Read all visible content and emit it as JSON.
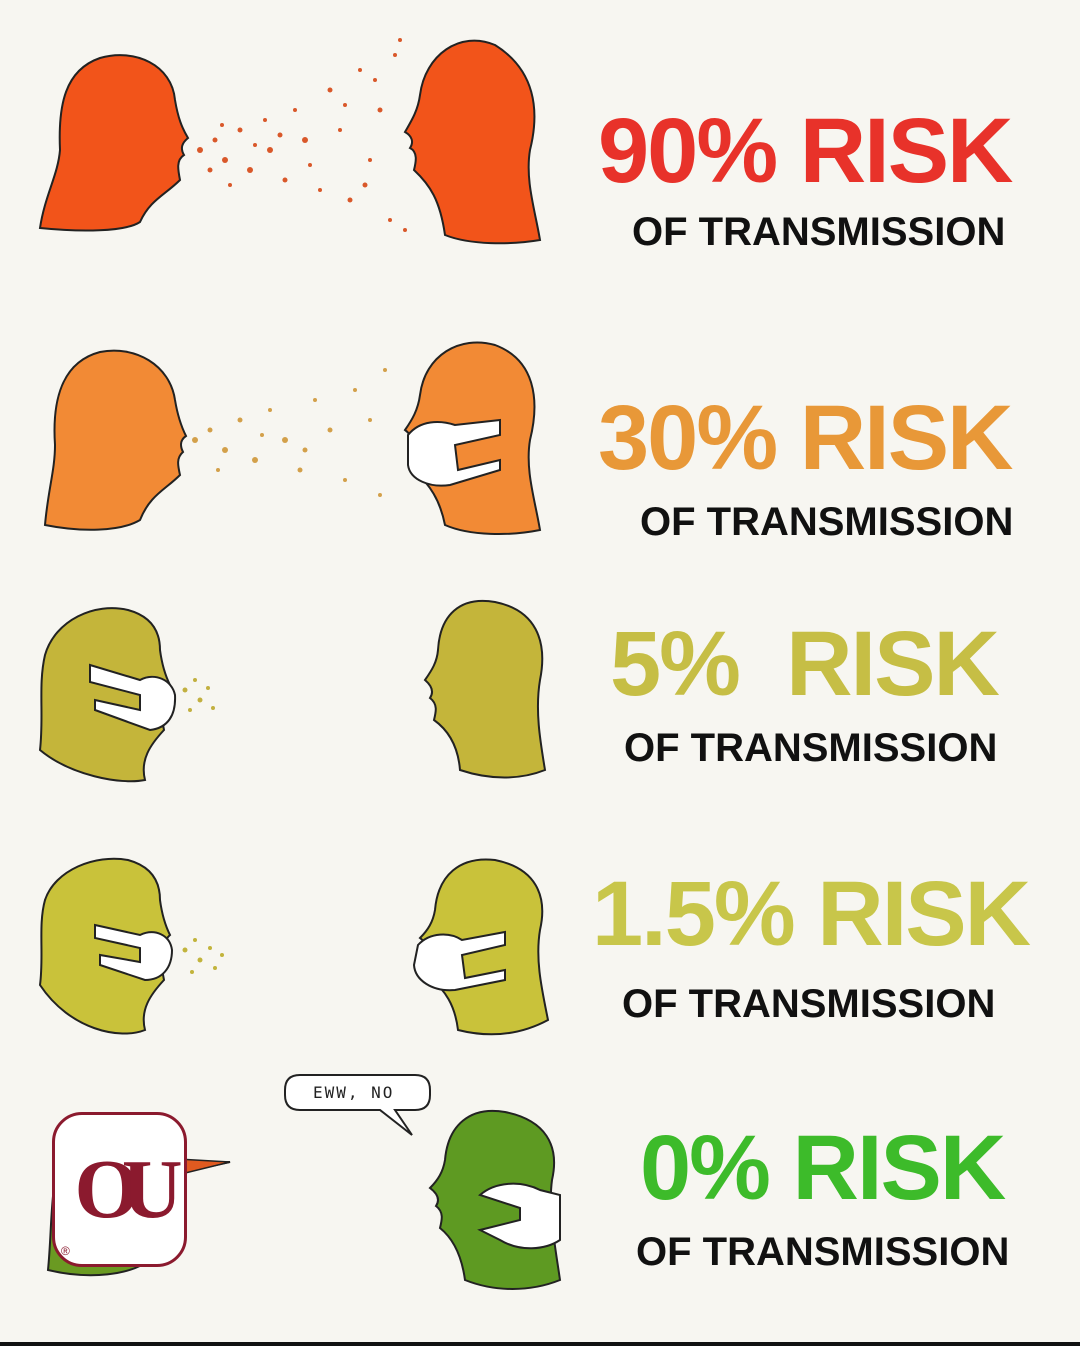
{
  "rows": [
    {
      "percent_label": "90% RISK",
      "sub_label": "OF TRANSMISSION",
      "color": "#e8322a",
      "head_color": "#f2541a",
      "spray_color": "#d9582a"
    },
    {
      "percent_label": "30% RISK",
      "sub_label": "OF TRANSMISSION",
      "color": "#e89838",
      "head_color": "#f28a35",
      "spray_color": "#d3a04a"
    },
    {
      "percent_label": "5%  RISK",
      "sub_label": "OF TRANSMISSION",
      "color": "#c6be45",
      "head_color": "#c4b53a",
      "spray_color": "#c2b040"
    },
    {
      "percent_label": "1.5% RISK",
      "sub_label": "OF TRANSMISSION",
      "color": "#c8c64a",
      "head_color": "#c9c23a",
      "spray_color": "#c2b43c"
    },
    {
      "percent_label": "0% RISK",
      "sub_label": "OF TRANSMISSION",
      "color": "#3dbb2a",
      "head_color": "#5e9a22",
      "spray_color": "#5e9a22"
    }
  ],
  "speech_bubble": "EWW, NO",
  "logo": {
    "letters": "OU",
    "registered_mark": "®",
    "color": "#8b1a2e"
  }
}
